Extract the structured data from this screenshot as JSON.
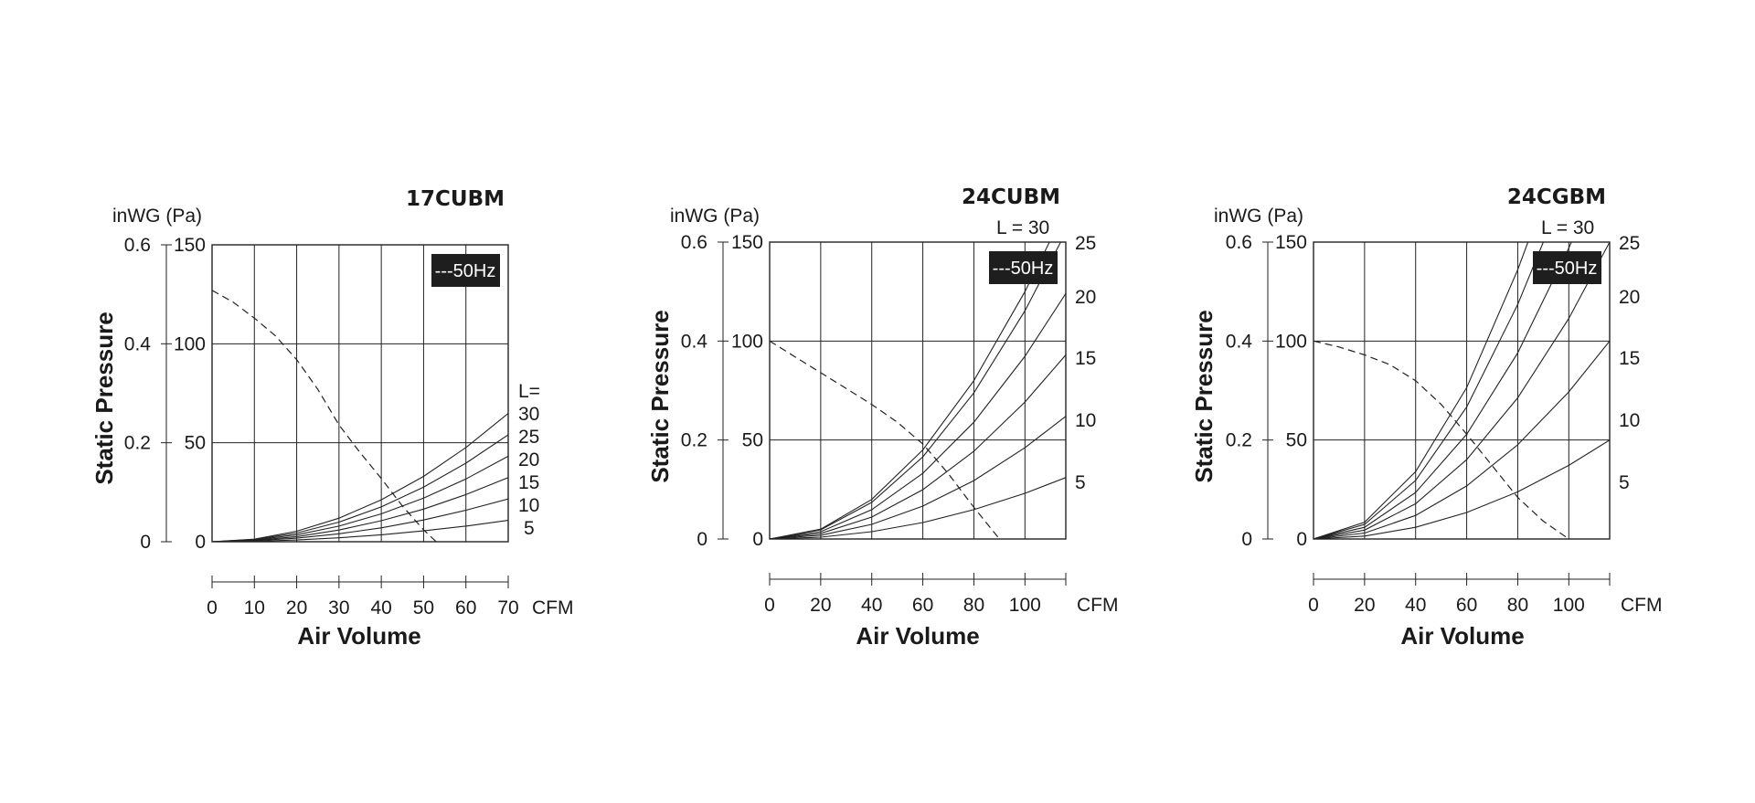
{
  "chart_data": [
    {
      "type": "line",
      "title": "17CUBM",
      "ylabel": "Static Pressure",
      "xlabel": "Air Volume",
      "y_unit_label": "inWG (Pa)",
      "x_unit": "CFM",
      "xlim": [
        0,
        70
      ],
      "ylim": [
        0,
        150
      ],
      "x_ticks": [
        0,
        10,
        20,
        30,
        40,
        50,
        60,
        70
      ],
      "x_tick_labels": [
        "0",
        "10",
        "20",
        "30",
        "40",
        "50",
        "60",
        "70"
      ],
      "y_ticks": [
        0,
        50,
        100,
        150
      ],
      "y_tick_labels_pa": [
        "0",
        "50",
        "100",
        "150"
      ],
      "y_tick_labels_inwg": [
        "0",
        "0.2",
        "0.4",
        "0.6"
      ],
      "grid": true,
      "legend": {
        "text": "---50Hz",
        "position": "top-right"
      },
      "curve_label_header": "L=",
      "curve_labels": [
        "30",
        "25",
        "20",
        "15",
        "10",
        "5"
      ],
      "series": [
        {
          "name": "50Hz",
          "style": "dashed",
          "x": [
            0,
            5,
            10,
            15,
            20,
            25,
            30,
            35,
            40,
            45,
            50,
            53
          ],
          "y": [
            127,
            121,
            113,
            104,
            92,
            77,
            59,
            45,
            32,
            18,
            6,
            0
          ]
        },
        {
          "name": "30",
          "style": "solid",
          "x": [
            0,
            10,
            20,
            30,
            40,
            50,
            60,
            70
          ],
          "y": [
            0,
            1.3,
            5.3,
            11.9,
            21.2,
            33,
            47.6,
            64.8
          ]
        },
        {
          "name": "25",
          "style": "solid",
          "x": [
            0,
            10,
            20,
            30,
            40,
            50,
            60,
            70
          ],
          "y": [
            0,
            1.1,
            4.4,
            9.9,
            17.6,
            27.6,
            39.7,
            54
          ]
        },
        {
          "name": "20",
          "style": "solid",
          "x": [
            0,
            10,
            20,
            30,
            40,
            50,
            60,
            70
          ],
          "y": [
            0,
            0.88,
            3.5,
            7.9,
            14.1,
            22,
            31.7,
            43.2
          ]
        },
        {
          "name": "15",
          "style": "solid",
          "x": [
            0,
            10,
            20,
            30,
            40,
            50,
            60,
            70
          ],
          "y": [
            0,
            0.66,
            2.6,
            5.9,
            10.6,
            16.5,
            23.8,
            32.4
          ]
        },
        {
          "name": "10",
          "style": "solid",
          "x": [
            0,
            10,
            20,
            30,
            40,
            50,
            60,
            70
          ],
          "y": [
            0,
            0.44,
            1.8,
            4,
            7,
            11,
            15.9,
            21.6
          ]
        },
        {
          "name": "5",
          "style": "solid",
          "x": [
            0,
            10,
            20,
            30,
            40,
            50,
            60,
            70
          ],
          "y": [
            0,
            0.22,
            0.88,
            2,
            3.5,
            5.5,
            7.9,
            10.8
          ]
        }
      ]
    },
    {
      "type": "line",
      "title": "24CUBM",
      "ylabel": "Static Pressure",
      "xlabel": "Air Volume",
      "y_unit_label": "inWG (Pa)",
      "x_unit": "CFM",
      "xlim": [
        0,
        116
      ],
      "ylim": [
        0,
        150
      ],
      "x_ticks": [
        0,
        20,
        40,
        60,
        80,
        100,
        116
      ],
      "x_tick_labels": [
        "0",
        "20",
        "40",
        "60",
        "80",
        "100",
        ""
      ],
      "y_ticks": [
        0,
        50,
        100,
        150
      ],
      "y_tick_labels_pa": [
        "0",
        "50",
        "100",
        "150"
      ],
      "y_tick_labels_inwg": [
        "0",
        "0.2",
        "0.4",
        "0.6"
      ],
      "grid": true,
      "legend": {
        "text": "---50Hz",
        "position": "top-right"
      },
      "curve_labels": [
        "L = 30",
        "25",
        "20",
        "15",
        "10",
        "5"
      ],
      "series": [
        {
          "name": "50Hz",
          "style": "dashed",
          "x": [
            0,
            10,
            20,
            30,
            40,
            50,
            60,
            70,
            80,
            90
          ],
          "y": [
            100,
            92,
            84,
            76,
            68,
            59,
            48,
            33,
            16,
            0
          ]
        },
        {
          "name": "30",
          "style": "solid",
          "x": [
            0,
            20,
            40,
            60,
            80,
            100,
            110
          ],
          "y": [
            0,
            5,
            20,
            45,
            80,
            125,
            151
          ]
        },
        {
          "name": "25",
          "style": "solid",
          "x": [
            0,
            20,
            40,
            60,
            80,
            100,
            114
          ],
          "y": [
            0,
            4.6,
            18.5,
            41.5,
            73.8,
            115.3,
            150
          ]
        },
        {
          "name": "20",
          "style": "solid",
          "x": [
            0,
            20,
            40,
            60,
            80,
            100,
            116
          ],
          "y": [
            0,
            3.7,
            14.8,
            33.2,
            59,
            92.3,
            124
          ]
        },
        {
          "name": "15",
          "style": "solid",
          "x": [
            0,
            20,
            40,
            60,
            80,
            100,
            116
          ],
          "y": [
            0,
            2.8,
            11.1,
            24.9,
            44.3,
            69.2,
            93
          ]
        },
        {
          "name": "10",
          "style": "solid",
          "x": [
            0,
            20,
            40,
            60,
            80,
            100,
            116
          ],
          "y": [
            0,
            1.9,
            7.4,
            16.6,
            29.5,
            46.1,
            62
          ]
        },
        {
          "name": "5",
          "style": "solid",
          "x": [
            0,
            20,
            40,
            60,
            80,
            100,
            116
          ],
          "y": [
            0,
            0.9,
            3.7,
            8.3,
            14.8,
            23.1,
            31
          ]
        }
      ]
    },
    {
      "type": "line",
      "title": "24CGBM",
      "ylabel": "Static Pressure",
      "xlabel": "Air Volume",
      "y_unit_label": "inWG (Pa)",
      "x_unit": "CFM",
      "xlim": [
        0,
        116
      ],
      "ylim": [
        0,
        150
      ],
      "x_ticks": [
        0,
        20,
        40,
        60,
        80,
        100,
        116
      ],
      "x_tick_labels": [
        "0",
        "20",
        "40",
        "60",
        "80",
        "100",
        ""
      ],
      "y_ticks": [
        0,
        50,
        100,
        150
      ],
      "y_tick_labels_pa": [
        "0",
        "50",
        "100",
        "150"
      ],
      "y_tick_labels_inwg": [
        "0",
        "0.2",
        "0.4",
        "0.6"
      ],
      "grid": true,
      "legend": {
        "text": "---50Hz",
        "position": "top-right"
      },
      "curve_labels": [
        "L = 30",
        "25",
        "20",
        "15",
        "10",
        "5"
      ],
      "series": [
        {
          "name": "50Hz",
          "style": "dashed",
          "x": [
            0,
            10,
            20,
            30,
            40,
            50,
            60,
            70,
            80,
            90,
            100
          ],
          "y": [
            100,
            97,
            93,
            88,
            80,
            68,
            53,
            37,
            21,
            9,
            0
          ]
        },
        {
          "name": "30",
          "style": "solid",
          "x": [
            0,
            20,
            40,
            60,
            80,
            84
          ],
          "y": [
            0,
            8.5,
            34,
            76.5,
            136,
            150
          ]
        },
        {
          "name": "25",
          "style": "solid",
          "x": [
            0,
            20,
            40,
            60,
            80,
            90
          ],
          "y": [
            0,
            7.4,
            29.6,
            66.7,
            118.5,
            150
          ]
        },
        {
          "name": "20",
          "style": "solid",
          "x": [
            0,
            20,
            40,
            60,
            80,
            100,
            101
          ],
          "y": [
            0,
            5.9,
            23.5,
            52.9,
            94,
            147,
            150
          ]
        },
        {
          "name": "15",
          "style": "solid",
          "x": [
            0,
            20,
            40,
            60,
            80,
            100,
            116
          ],
          "y": [
            0,
            4.5,
            17.8,
            40.1,
            71.3,
            111.4,
            150
          ]
        },
        {
          "name": "10",
          "style": "solid",
          "x": [
            0,
            20,
            40,
            60,
            80,
            100,
            116
          ],
          "y": [
            0,
            3,
            11.9,
            26.8,
            47.6,
            74.3,
            100
          ]
        },
        {
          "name": "5",
          "style": "solid",
          "x": [
            0,
            20,
            40,
            60,
            80,
            100,
            116
          ],
          "y": [
            0,
            1.5,
            5.9,
            13.4,
            23.8,
            37.2,
            50
          ]
        }
      ]
    }
  ]
}
